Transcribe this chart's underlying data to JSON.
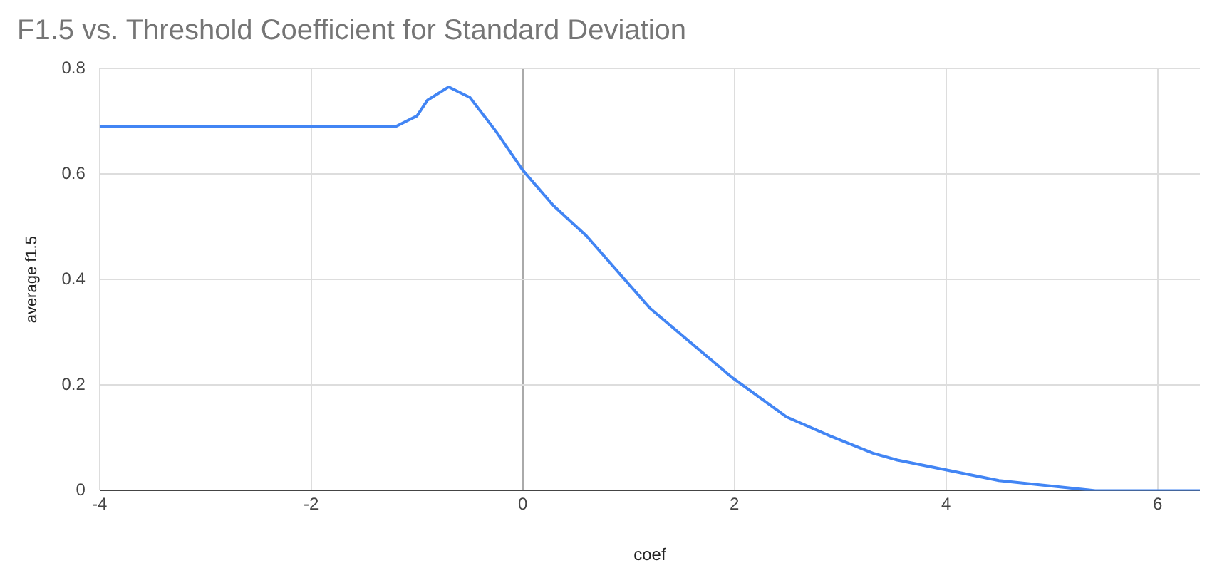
{
  "chart_data": {
    "type": "line",
    "title": "F1.5 vs. Threshold Coefficient for Standard Deviation",
    "xlabel": "coef",
    "ylabel": "average f1.5",
    "x": [
      -4,
      -1.5,
      -1.2,
      -1.1,
      -1.0,
      -0.9,
      -0.7,
      -0.5,
      -0.25,
      0,
      0.29,
      0.6,
      1.2,
      1.98,
      2.49,
      2.9,
      3.31,
      3.54,
      4.5,
      5.41,
      6.4
    ],
    "series": [
      {
        "color": "#4285f4",
        "values": [
          0.69,
          0.69,
          0.69,
          0.7,
          0.71,
          0.74,
          0.765,
          0.745,
          0.68,
          0.607,
          0.54,
          0.483,
          0.346,
          0.214,
          0.14,
          0.104,
          0.071,
          0.058,
          0.019,
          0,
          0
        ]
      }
    ],
    "xlim": [
      -4,
      6.4
    ],
    "xticks": [
      -4,
      -2,
      0,
      2,
      4,
      6
    ],
    "ylim": [
      0,
      0.8
    ],
    "yticks": [
      0,
      0.2,
      0.4,
      0.6,
      0.8
    ],
    "grid": true,
    "legend": false,
    "marker": "none",
    "line_style": "solid"
  }
}
